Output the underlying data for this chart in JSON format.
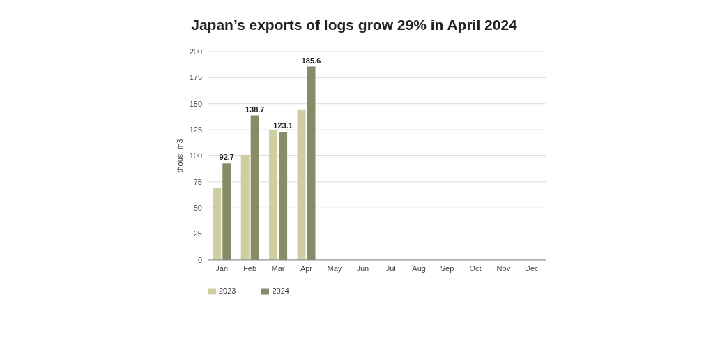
{
  "chart_data": {
    "type": "bar",
    "title": "Japan’s exports of logs grow 29% in April 2024",
    "ylabel": "thous. m3",
    "categories": [
      "Jan",
      "Feb",
      "Mar",
      "Apr",
      "May",
      "Jun",
      "Jul",
      "Aug",
      "Sep",
      "Oct",
      "Nov",
      "Dec"
    ],
    "series": [
      {
        "name": "2023",
        "color": "#cfcea0",
        "values": [
          69,
          101,
          125,
          144,
          null,
          null,
          null,
          null,
          null,
          null,
          null,
          null
        ]
      },
      {
        "name": "2024",
        "color": "#878c68",
        "values": [
          92.7,
          138.7,
          123.1,
          185.6,
          null,
          null,
          null,
          null,
          null,
          null,
          null,
          null
        ],
        "value_labels": [
          "92.7",
          "138.7",
          "123.1",
          "185.6",
          null,
          null,
          null,
          null,
          null,
          null,
          null,
          null
        ]
      }
    ],
    "ylim": [
      0,
      200
    ],
    "yticks": [
      0,
      25,
      50,
      75,
      100,
      125,
      150,
      175,
      200
    ],
    "grid": "y",
    "legend": "bottom left"
  }
}
